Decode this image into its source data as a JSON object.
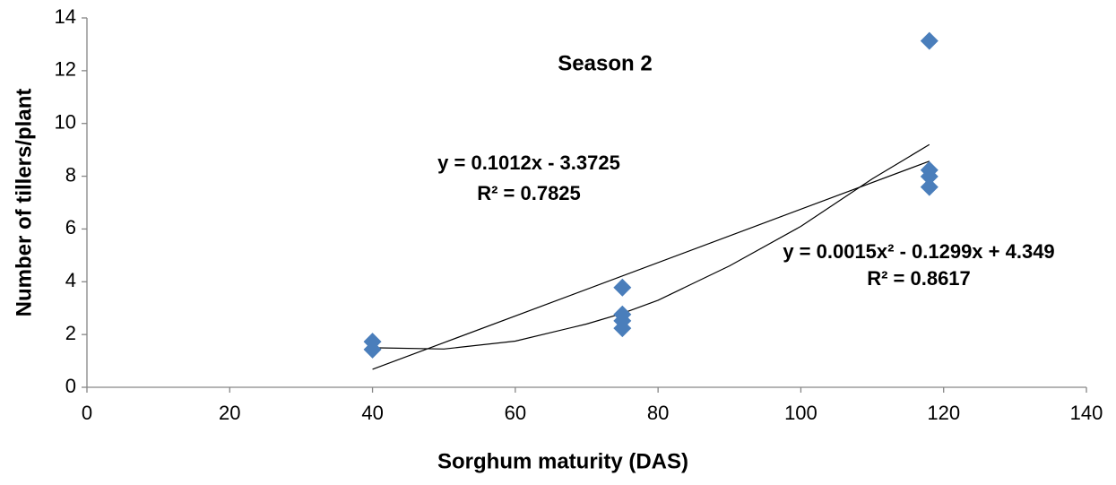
{
  "chart_data": {
    "type": "scatter",
    "title": "Season 2",
    "xlabel": "Sorghum maturity (DAS)",
    "ylabel": "Number of tillers/plant",
    "xlim": [
      0,
      140
    ],
    "xticks": [
      0,
      20,
      40,
      60,
      80,
      100,
      120,
      140
    ],
    "ylim": [
      0,
      14
    ],
    "yticks": [
      0,
      2,
      4,
      6,
      8,
      10,
      12,
      14
    ],
    "series": [
      {
        "type": "scatter",
        "color": "#4a7ebb",
        "x": [
          40,
          40,
          75,
          75,
          75,
          75,
          118,
          118,
          118,
          118
        ],
        "values": [
          1.73,
          1.43,
          3.78,
          2.76,
          2.52,
          2.24,
          13.13,
          8.23,
          7.99,
          7.59
        ]
      },
      {
        "type": "line",
        "color": "#000000",
        "x": [
          40,
          118
        ],
        "values": [
          0.68,
          8.57
        ]
      },
      {
        "type": "line",
        "color": "#000000",
        "x": [
          40,
          50,
          60,
          70,
          75,
          80,
          90,
          100,
          110,
          118
        ],
        "values": [
          1.5,
          1.45,
          1.75,
          2.4,
          2.8,
          3.3,
          4.6,
          6.1,
          7.9,
          9.2
        ]
      }
    ],
    "annotations": [
      "y = 0.1012x - 3.3725",
      "R² = 0.7825",
      "y = 0.0015x² - 0.1299x + 4.349",
      "R² = 0.8617"
    ]
  }
}
